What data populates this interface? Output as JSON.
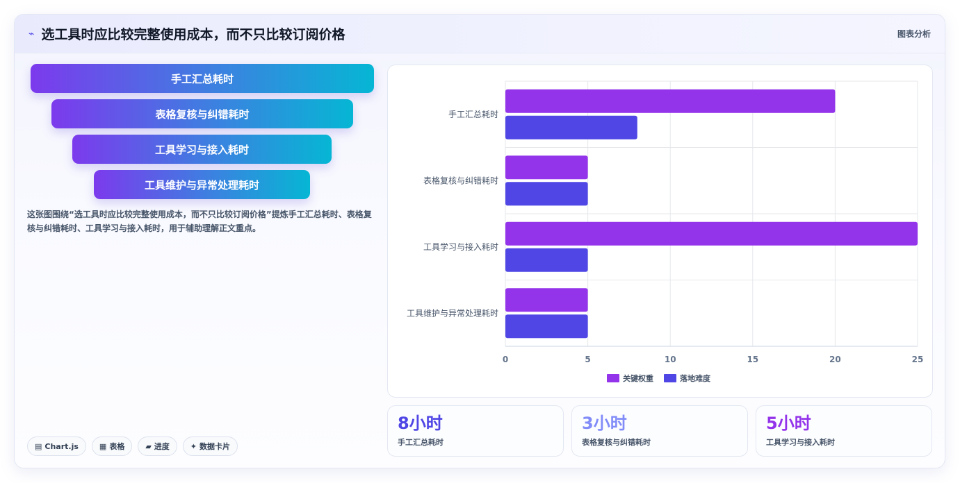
{
  "header": {
    "title": "选工具时应比较完整使用成本，而不只比较订阅价格",
    "tag": "图表分析"
  },
  "funnel": {
    "items": [
      "手工汇总耗时",
      "表格复核与纠错耗时",
      "工具学习与接入耗时",
      "工具维护与异常处理耗时"
    ]
  },
  "description": "这张图围绕“选工具时应比较完整使用成本，而不只比较订阅价格”提炼手工汇总耗时、表格复核与纠错耗时、工具学习与接入耗时，用于辅助理解正文重点。",
  "chips": [
    {
      "icon": "chart-icon",
      "glyph": "▤",
      "label": "Chart.js"
    },
    {
      "icon": "table-icon",
      "glyph": "▦",
      "label": "表格"
    },
    {
      "icon": "progress-icon",
      "glyph": "▰",
      "label": "进度"
    },
    {
      "icon": "sparkle-icon",
      "glyph": "✦",
      "label": "数据卡片"
    }
  ],
  "chart_data": {
    "type": "bar",
    "orientation": "horizontal",
    "categories": [
      "手工汇总耗时",
      "表格复核与纠错耗时",
      "工具学习与接入耗时",
      "工具维护与异常处理耗时"
    ],
    "series": [
      {
        "name": "关键权重",
        "color": "#9333ea",
        "values": [
          20,
          5,
          25,
          5
        ]
      },
      {
        "name": "落地难度",
        "color": "#4f46e5",
        "values": [
          8,
          5,
          5,
          5
        ]
      }
    ],
    "xlim": [
      0,
      25
    ],
    "xticks": [
      0,
      5,
      10,
      15,
      20,
      25
    ],
    "grid": true,
    "legend": "bottom"
  },
  "stats": [
    {
      "value": "8小时",
      "label": "手工汇总耗时",
      "color": "#4f46e5"
    },
    {
      "value": "3小时",
      "label": "表格复核与纠错耗时",
      "color": "#818cf8"
    },
    {
      "value": "5小时",
      "label": "工具学习与接入耗时",
      "color": "#9333ea"
    }
  ]
}
